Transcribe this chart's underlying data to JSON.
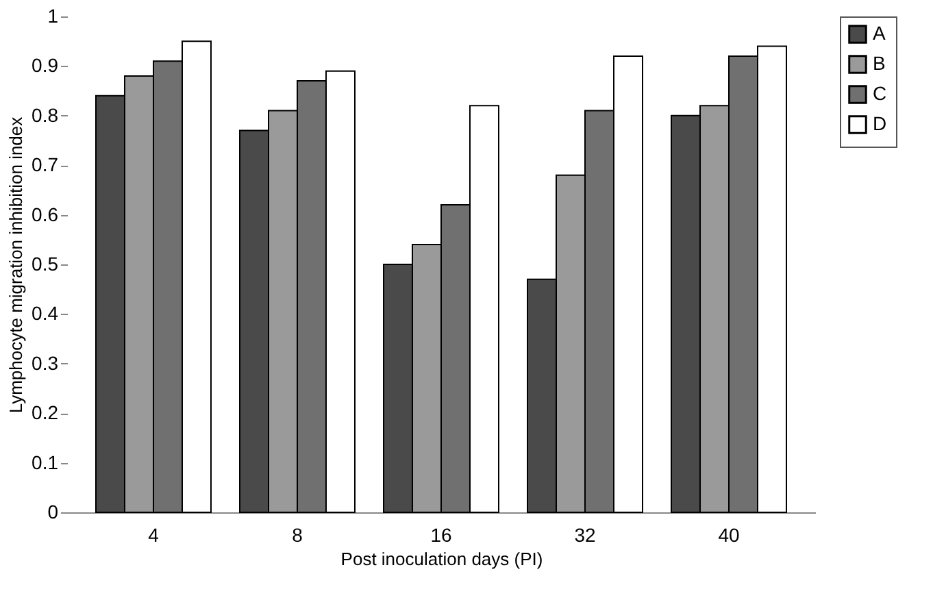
{
  "chart_data": {
    "type": "bar",
    "xlabel": "Post inoculation days (PI)",
    "ylabel": "Lymphocyte migration inhibition index",
    "categories": [
      "4",
      "8",
      "16",
      "32",
      "40"
    ],
    "series": [
      {
        "name": "A",
        "color": "#4a4a4a",
        "values": [
          0.84,
          0.77,
          0.5,
          0.47,
          0.8
        ]
      },
      {
        "name": "B",
        "color": "#9a9a9a",
        "values": [
          0.88,
          0.81,
          0.54,
          0.68,
          0.82
        ]
      },
      {
        "name": "C",
        "color": "#707070",
        "values": [
          0.91,
          0.87,
          0.62,
          0.81,
          0.92
        ]
      },
      {
        "name": "D",
        "color": "#ffffff",
        "values": [
          0.95,
          0.89,
          0.82,
          0.92,
          0.94
        ]
      }
    ],
    "ylim": [
      0,
      1
    ],
    "yticks": [
      0,
      0.1,
      0.2,
      0.3,
      0.4,
      0.5,
      0.6,
      0.7,
      0.8,
      0.9,
      1
    ],
    "grid": false,
    "legend": "right"
  }
}
